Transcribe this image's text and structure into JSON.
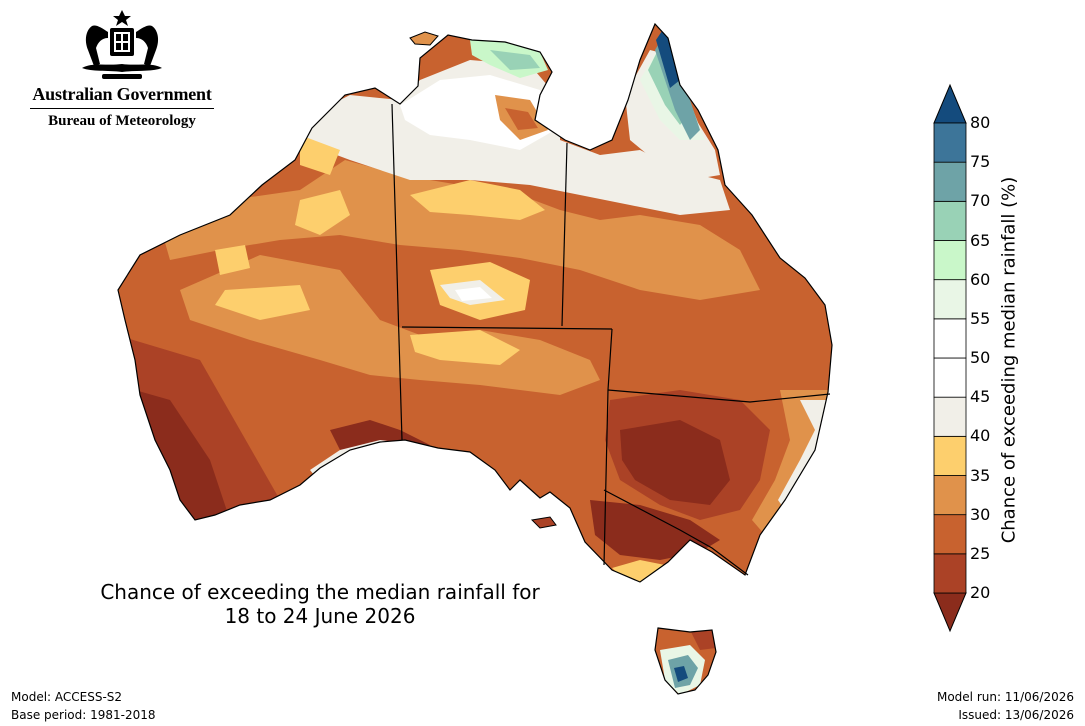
{
  "agency": {
    "government": "Australian Government",
    "bureau": "Bureau of Meteorology"
  },
  "title": {
    "line1": "Chance of exceeding the median rainfall for",
    "line2": "18 to 24 June 2026"
  },
  "footer": {
    "model": "Model: ACCESS-S2",
    "base_period": "Base period: 1981-2018",
    "model_run": "Model run: 11/06/2026",
    "issued": "Issued: 13/06/2026"
  },
  "legend": {
    "label": "Chance of exceeding median rainfall (%)",
    "ticks": [
      "20",
      "25",
      "30",
      "35",
      "40",
      "45",
      "50",
      "55",
      "60",
      "65",
      "70",
      "75",
      "80"
    ],
    "bins": [
      {
        "range": "<20",
        "color": "#8b2c1c"
      },
      {
        "range": "20-25",
        "color": "#ab4226"
      },
      {
        "range": "25-30",
        "color": "#c8622f"
      },
      {
        "range": "30-35",
        "color": "#e0924b"
      },
      {
        "range": "35-40",
        "color": "#fdcf6d"
      },
      {
        "range": "40-45",
        "color": "#f1efe8"
      },
      {
        "range": "45-50",
        "color": "#ffffff"
      },
      {
        "range": "50-55",
        "color": "#ffffff"
      },
      {
        "range": "55-60",
        "color": "#e9f6e6"
      },
      {
        "range": "60-65",
        "color": "#c9f7c9"
      },
      {
        "range": "65-70",
        "color": "#99d2b6"
      },
      {
        "range": "70-75",
        "color": "#6ea3a7"
      },
      {
        "range": "75-80",
        "color": "#3d7599"
      },
      {
        "range": ">80",
        "color": "#144b7d"
      }
    ]
  }
}
